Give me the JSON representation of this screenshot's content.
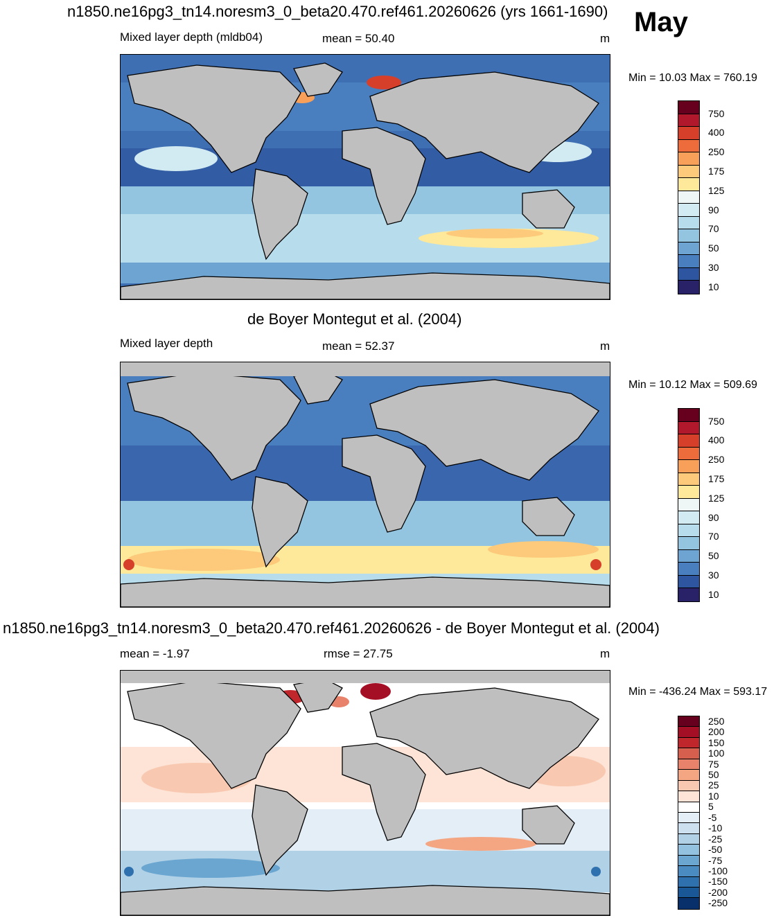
{
  "header": {
    "title": "n1850.ne16pg3_tn14.noresm3_0_beta20.470.ref461.20260626 (yrs 1661-1690)",
    "month": "May"
  },
  "panels": [
    {
      "left_label": "Mixed layer depth (mldb04)",
      "center_label": "mean =  50.40",
      "units": "m",
      "minmax": "Min =  10.03 Max = 760.19"
    },
    {
      "title": "de Boyer Montegut et al. (2004)",
      "left_label": "Mixed layer depth",
      "center_label": "mean =  52.37",
      "units": "m",
      "minmax": "Min =  10.12 Max = 509.69"
    },
    {
      "title": "n1850.ne16pg3_tn14.noresm3_0_beta20.470.ref461.20260626 - de Boyer Montegut et al. (2004)",
      "left_label": "mean =  -1.97",
      "center_label": "rmse =  27.75",
      "units": "m",
      "minmax": "Min = -436.24 Max = 593.17"
    }
  ],
  "colorbars": {
    "mld": {
      "colors": [
        "#67001f",
        "#b2182b",
        "#d6402b",
        "#ee6b3c",
        "#f8a05a",
        "#fdc97a",
        "#fee99a",
        "#eef7f5",
        "#d2ebf2",
        "#b7dcec",
        "#93c4e0",
        "#6ea4d2",
        "#4a7fbf",
        "#2e55a0",
        "#2a2268"
      ],
      "labels": [
        "750",
        "400",
        "250",
        "175",
        "125",
        "90",
        "70",
        "50",
        "30",
        "10"
      ]
    },
    "diff": {
      "colors": [
        "#67001f",
        "#a50f26",
        "#c0272d",
        "#d6604d",
        "#e8826b",
        "#f4a582",
        "#f9c8b0",
        "#fde4d6",
        "#ffffff",
        "#e4eef7",
        "#cde0ef",
        "#b1d1e7",
        "#92c2df",
        "#6aa6d0",
        "#4a8cc1",
        "#2f70ae",
        "#1a5797",
        "#08306b"
      ],
      "labels": [
        "250",
        "200",
        "150",
        "100",
        "75",
        "50",
        "25",
        "10",
        "5",
        "-5",
        "-10",
        "-25",
        "-50",
        "-75",
        "-100",
        "-150",
        "-200",
        "-250"
      ]
    }
  },
  "palette": {
    "land": "#bfbfbf"
  }
}
